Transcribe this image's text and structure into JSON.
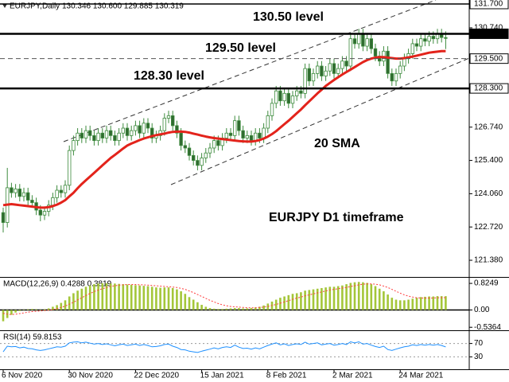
{
  "chart_data": [
    {
      "type": "candlestick",
      "header": "EURJPY,Daily  130.346 130.600 129.885 130.319",
      "categories": [
        "6 Nov 2020",
        null,
        null,
        null,
        null,
        null,
        null,
        null,
        null,
        null,
        null,
        null,
        null,
        null,
        null,
        null,
        "30 Nov 2020",
        null,
        null,
        null,
        null,
        null,
        null,
        null,
        null,
        null,
        null,
        null,
        null,
        null,
        null,
        null,
        "22 Dec 2020",
        null,
        null,
        null,
        null,
        null,
        null,
        null,
        null,
        null,
        null,
        null,
        null,
        null,
        null,
        null,
        "15 Jan 2021",
        null,
        null,
        null,
        null,
        null,
        null,
        null,
        null,
        null,
        null,
        null,
        null,
        null,
        null,
        null,
        "8 Feb 2021",
        null,
        null,
        null,
        null,
        null,
        null,
        null,
        null,
        null,
        null,
        null,
        null,
        null,
        null,
        null,
        "2 Mar 2021",
        null,
        null,
        null,
        null,
        null,
        null,
        null,
        null,
        null,
        null,
        null,
        null,
        null,
        null,
        null,
        "24 Mar 2021",
        null,
        null,
        null,
        null,
        null,
        null,
        null,
        null,
        null,
        null,
        null
      ],
      "open": [
        123.3,
        122.9,
        124.3,
        124.1,
        124.25,
        123.95,
        124.1,
        123.8,
        123.7,
        123.4,
        123.2,
        123.35,
        123.6,
        123.9,
        124.2,
        124.1,
        124.4,
        125.8,
        126.2,
        126.5,
        126.3,
        126.6,
        126.4,
        126.2,
        126.5,
        126.3,
        126.6,
        126.4,
        126.2,
        126.5,
        126.7,
        126.4,
        126.6,
        126.8,
        126.5,
        126.9,
        126.7,
        126.3,
        126.4,
        126.6,
        127.1,
        127.2,
        126.8,
        126.5,
        126.0,
        125.9,
        125.6,
        125.4,
        125.2,
        125.5,
        125.7,
        125.9,
        126.2,
        126.0,
        126.3,
        126.5,
        126.4,
        127.0,
        126.6,
        126.3,
        126.4,
        126.2,
        126.5,
        126.3,
        126.7,
        127.2,
        127.7,
        128.2,
        127.8,
        128.1,
        127.7,
        128.0,
        128.2,
        128.1,
        129.1,
        128.6,
        128.9,
        129.2,
        128.8,
        129.0,
        129.3,
        128.9,
        129.1,
        129.4,
        129.2,
        130.3,
        130.1,
        130.5,
        130.0,
        130.3,
        129.9,
        129.6,
        129.4,
        129.8,
        128.9,
        128.6,
        128.9,
        129.2,
        129.5,
        129.7,
        130.1,
        130.0,
        130.3,
        130.2,
        130.4,
        130.3,
        130.5,
        130.346
      ],
      "high": [
        123.5,
        125.1,
        124.5,
        124.45,
        124.45,
        124.3,
        124.3,
        124.0,
        123.9,
        123.6,
        123.55,
        123.8,
        124.1,
        124.4,
        124.4,
        124.6,
        126.0,
        126.4,
        126.7,
        126.7,
        126.8,
        126.8,
        126.6,
        126.7,
        126.7,
        126.8,
        126.8,
        126.6,
        126.7,
        126.9,
        126.9,
        126.8,
        127.0,
        127.0,
        127.1,
        127.1,
        126.9,
        126.6,
        126.8,
        127.3,
        127.4,
        127.4,
        127.0,
        126.7,
        126.2,
        126.1,
        125.8,
        125.6,
        125.7,
        125.9,
        126.1,
        126.4,
        126.4,
        126.5,
        126.7,
        126.7,
        127.2,
        127.2,
        126.8,
        126.6,
        126.6,
        126.7,
        126.7,
        126.9,
        127.4,
        127.9,
        128.4,
        128.4,
        128.3,
        128.3,
        128.2,
        128.4,
        128.4,
        129.3,
        129.3,
        129.1,
        129.4,
        129.4,
        129.2,
        129.5,
        129.5,
        129.3,
        129.6,
        129.6,
        130.5,
        130.5,
        130.7,
        130.7,
        130.5,
        130.5,
        130.1,
        129.8,
        130.0,
        130.0,
        129.1,
        129.1,
        129.4,
        129.7,
        129.9,
        130.3,
        130.3,
        130.5,
        130.5,
        130.6,
        130.6,
        130.7,
        130.7,
        130.6
      ],
      "low": [
        122.5,
        122.7,
        123.9,
        123.9,
        123.75,
        123.75,
        123.6,
        123.5,
        123.2,
        122.95,
        123.0,
        123.15,
        123.4,
        123.7,
        123.9,
        123.9,
        124.2,
        125.6,
        126.0,
        126.1,
        126.1,
        126.2,
        126.0,
        126.0,
        126.1,
        126.1,
        126.2,
        126.0,
        126.0,
        126.3,
        126.2,
        126.2,
        126.4,
        126.3,
        126.3,
        126.5,
        126.1,
        126.1,
        126.2,
        126.4,
        126.9,
        126.6,
        126.3,
        125.8,
        125.7,
        125.4,
        125.2,
        125.0,
        125.0,
        125.3,
        125.5,
        125.7,
        125.8,
        125.8,
        126.1,
        126.2,
        126.2,
        126.4,
        126.1,
        126.1,
        126.0,
        126.0,
        126.1,
        126.1,
        126.5,
        127.0,
        127.5,
        127.6,
        127.6,
        127.5,
        127.5,
        127.8,
        127.9,
        127.9,
        128.4,
        128.4,
        128.7,
        128.6,
        128.6,
        128.8,
        128.7,
        128.7,
        128.9,
        129.0,
        129.0,
        129.9,
        129.9,
        129.8,
        129.8,
        129.7,
        129.4,
        129.2,
        129.2,
        128.7,
        128.4,
        128.4,
        128.7,
        129.0,
        129.3,
        129.5,
        129.8,
        129.8,
        130.0,
        130.0,
        130.1,
        130.1,
        130.15,
        129.885
      ],
      "close": [
        122.9,
        124.3,
        124.1,
        124.25,
        123.95,
        124.1,
        123.8,
        123.7,
        123.4,
        123.2,
        123.35,
        123.6,
        123.9,
        124.2,
        124.1,
        124.4,
        125.8,
        126.2,
        126.5,
        126.3,
        126.6,
        126.4,
        126.2,
        126.5,
        126.3,
        126.6,
        126.4,
        126.2,
        126.5,
        126.7,
        126.4,
        126.6,
        126.8,
        126.5,
        126.9,
        126.7,
        126.3,
        126.4,
        126.6,
        127.1,
        127.2,
        126.8,
        126.5,
        126.0,
        125.9,
        125.6,
        125.4,
        125.2,
        125.5,
        125.7,
        125.9,
        126.2,
        126.0,
        126.3,
        126.5,
        126.4,
        127.0,
        126.6,
        126.3,
        126.4,
        126.2,
        126.5,
        126.3,
        126.7,
        127.2,
        127.7,
        128.2,
        127.8,
        128.1,
        127.7,
        128.0,
        128.2,
        128.1,
        129.1,
        128.6,
        128.9,
        129.2,
        128.8,
        129.0,
        129.3,
        128.9,
        129.1,
        129.4,
        129.2,
        130.3,
        130.1,
        130.5,
        130.0,
        130.3,
        129.9,
        129.6,
        129.4,
        129.8,
        128.9,
        128.6,
        128.9,
        129.2,
        129.5,
        129.7,
        130.1,
        130.0,
        130.3,
        130.2,
        130.4,
        130.3,
        130.5,
        130.35,
        130.319
      ],
      "up_color": "#ffffff",
      "down_color": "#2f6b2f",
      "wick_color": "#3d8b3d",
      "series": [
        {
          "name": "20 SMA",
          "color": "#e3231b",
          "values": [
            123.6,
            123.62,
            123.64,
            123.62,
            123.6,
            123.58,
            123.56,
            123.54,
            123.52,
            123.5,
            123.5,
            123.52,
            123.56,
            123.62,
            123.7,
            123.8,
            123.95,
            124.1,
            124.28,
            124.45,
            124.6,
            124.75,
            124.9,
            125.05,
            125.2,
            125.35,
            125.5,
            125.62,
            125.75,
            125.88,
            126.0,
            126.08,
            126.15,
            126.22,
            126.28,
            126.33,
            126.38,
            126.42,
            126.45,
            126.48,
            126.52,
            126.55,
            126.56,
            126.56,
            126.55,
            126.52,
            126.48,
            126.44,
            126.4,
            126.36,
            126.33,
            126.3,
            126.28,
            126.26,
            126.24,
            126.22,
            126.2,
            126.18,
            126.17,
            126.16,
            126.16,
            126.18,
            126.22,
            126.28,
            126.36,
            126.46,
            126.58,
            126.72,
            126.86,
            127.0,
            127.15,
            127.3,
            127.45,
            127.62,
            127.78,
            127.94,
            128.1,
            128.25,
            128.4,
            128.52,
            128.64,
            128.75,
            128.86,
            128.96,
            129.06,
            129.16,
            129.26,
            129.36,
            129.44,
            129.5,
            129.54,
            129.56,
            129.56,
            129.54,
            129.52,
            129.5,
            129.5,
            129.52,
            129.55,
            129.58,
            129.62,
            129.66,
            129.7,
            129.74,
            129.76,
            129.78,
            129.8,
            129.8
          ]
        }
      ],
      "ylim": [
        120.74,
        131.86
      ],
      "yticks": [
        {
          "value": 130.74,
          "label": "130.740"
        },
        {
          "value": 126.74,
          "label": "126.740"
        },
        {
          "value": 125.4,
          "label": "125.400"
        },
        {
          "value": 124.06,
          "label": "124.060"
        },
        {
          "value": 122.72,
          "label": "122.720"
        },
        {
          "value": 121.38,
          "label": "121.380"
        }
      ],
      "levels": [
        {
          "value": 131.7,
          "label": "131.700",
          "line": "thin",
          "label_fill": "#ffffff"
        },
        {
          "value": 130.5,
          "label": "130.500",
          "line": "thick",
          "label_fill": "#000000"
        },
        {
          "value": 129.5,
          "label": "129.500",
          "line": "dashed",
          "label_fill": "#ffffff"
        },
        {
          "value": 128.3,
          "label": "128.300",
          "line": "thick",
          "label_fill": "#ffffff"
        }
      ],
      "annotations": [
        "130.50 level",
        "129.50 level",
        "128.30 level",
        "EURJPY D1 timeframe"
      ]
    },
    {
      "type": "bar",
      "title": "MACD(12,26,9) 0.4288 0.3819",
      "series": [
        {
          "kind": "bar",
          "color": "#a4c639",
          "values": [
            -0.35,
            -0.25,
            -0.15,
            -0.08,
            -0.03,
            0.0,
            0.02,
            0.03,
            0.02,
            0.01,
            0.02,
            0.05,
            0.1,
            0.15,
            0.22,
            0.3,
            0.42,
            0.52,
            0.6,
            0.66,
            0.72,
            0.76,
            0.8,
            0.82,
            0.83,
            0.83,
            0.82,
            0.82,
            0.81,
            0.8,
            0.79,
            0.78,
            0.77,
            0.76,
            0.75,
            0.74,
            0.72,
            0.7,
            0.69,
            0.7,
            0.7,
            0.68,
            0.64,
            0.58,
            0.5,
            0.4,
            0.32,
            0.24,
            0.16,
            0.1,
            0.06,
            0.04,
            0.03,
            0.03,
            0.04,
            0.05,
            0.06,
            0.06,
            0.05,
            0.05,
            0.06,
            0.08,
            0.1,
            0.14,
            0.2,
            0.26,
            0.32,
            0.38,
            0.42,
            0.46,
            0.5,
            0.52,
            0.55,
            0.6,
            0.62,
            0.64,
            0.66,
            0.68,
            0.7,
            0.72,
            0.72,
            0.74,
            0.76,
            0.8,
            0.84,
            0.86,
            0.87,
            0.86,
            0.84,
            0.8,
            0.74,
            0.66,
            0.58,
            0.48,
            0.38,
            0.32,
            0.3,
            0.3,
            0.32,
            0.35,
            0.38,
            0.4,
            0.41,
            0.42,
            0.42,
            0.43,
            0.43,
            0.4288
          ]
        },
        {
          "kind": "line",
          "color": "#ff3b3b",
          "values": [
            -0.1,
            -0.13,
            -0.14,
            -0.13,
            -0.11,
            -0.09,
            -0.07,
            -0.05,
            -0.04,
            -0.03,
            -0.02,
            -0.01,
            0.01,
            0.04,
            0.08,
            0.12,
            0.18,
            0.24,
            0.31,
            0.38,
            0.45,
            0.51,
            0.57,
            0.62,
            0.66,
            0.7,
            0.73,
            0.75,
            0.77,
            0.78,
            0.79,
            0.79,
            0.79,
            0.78,
            0.78,
            0.77,
            0.76,
            0.75,
            0.74,
            0.73,
            0.72,
            0.71,
            0.7,
            0.67,
            0.64,
            0.59,
            0.54,
            0.48,
            0.42,
            0.36,
            0.3,
            0.25,
            0.2,
            0.16,
            0.13,
            0.11,
            0.1,
            0.09,
            0.08,
            0.07,
            0.07,
            0.07,
            0.08,
            0.09,
            0.11,
            0.14,
            0.17,
            0.21,
            0.25,
            0.29,
            0.33,
            0.37,
            0.4,
            0.44,
            0.47,
            0.5,
            0.53,
            0.56,
            0.59,
            0.62,
            0.64,
            0.66,
            0.68,
            0.7,
            0.73,
            0.75,
            0.78,
            0.8,
            0.81,
            0.81,
            0.8,
            0.78,
            0.74,
            0.7,
            0.64,
            0.58,
            0.52,
            0.47,
            0.43,
            0.4,
            0.38,
            0.37,
            0.37,
            0.37,
            0.37,
            0.38,
            0.38,
            0.3819
          ]
        }
      ],
      "ylim": [
        -0.58,
        1.0
      ],
      "yticks": [
        0.8249,
        {
          "value": 0,
          "label": "0.00"
        },
        -0.5364
      ]
    },
    {
      "type": "line",
      "title": "RSI(14) 59.8153",
      "color": "#1e90ff",
      "values": [
        45,
        62,
        60,
        61,
        57,
        59,
        55,
        54,
        51,
        49,
        51,
        54,
        57,
        60,
        59,
        62,
        72,
        74,
        75,
        72,
        74,
        71,
        68,
        70,
        67,
        69,
        66,
        63,
        66,
        68,
        64,
        66,
        68,
        64,
        67,
        64,
        60,
        61,
        63,
        67,
        68,
        62,
        58,
        52,
        51,
        47,
        45,
        43,
        47,
        50,
        53,
        57,
        54,
        58,
        60,
        58,
        65,
        59,
        55,
        56,
        53,
        57,
        54,
        59,
        64,
        68,
        72,
        66,
        69,
        64,
        67,
        69,
        67,
        74,
        68,
        70,
        72,
        66,
        68,
        70,
        65,
        67,
        70,
        67,
        75,
        72,
        75,
        68,
        70,
        65,
        61,
        58,
        62,
        52,
        49,
        53,
        57,
        60,
        62,
        66,
        64,
        67,
        65,
        67,
        65,
        67,
        64,
        59.8153
      ],
      "ylim": [
        0,
        100
      ],
      "yticks": [
        70,
        30
      ],
      "grid": true
    }
  ]
}
